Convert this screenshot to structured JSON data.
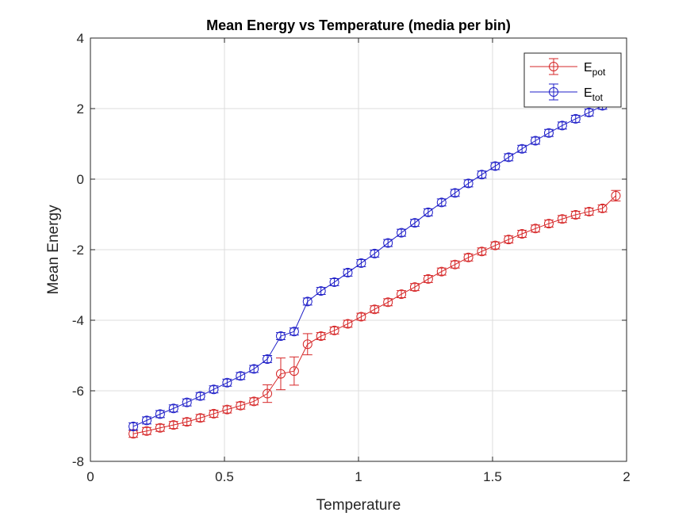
{
  "chart_data": {
    "type": "line",
    "title": "Mean Energy vs Temperature (media per bin)",
    "xlabel": "Temperature",
    "ylabel": "Mean Energy",
    "xlim": [
      0,
      2
    ],
    "ylim": [
      -8,
      4
    ],
    "xticks": [
      0,
      0.5,
      1,
      1.5,
      2
    ],
    "xtick_labels": [
      "0",
      "0.5",
      "1",
      "1.5",
      "2"
    ],
    "yticks": [
      -8,
      -6,
      -4,
      -2,
      0,
      2,
      4
    ],
    "ytick_labels": [
      "-8",
      "-6",
      "-4",
      "-2",
      "0",
      "2",
      "4"
    ],
    "grid": true,
    "legend_position": "top-right",
    "x": [
      0.16,
      0.21,
      0.26,
      0.31,
      0.36,
      0.41,
      0.46,
      0.51,
      0.56,
      0.61,
      0.66,
      0.71,
      0.76,
      0.81,
      0.86,
      0.91,
      0.96,
      1.01,
      1.06,
      1.11,
      1.16,
      1.21,
      1.26,
      1.31,
      1.36,
      1.41,
      1.46,
      1.51,
      1.56,
      1.61,
      1.66,
      1.71,
      1.76,
      1.81,
      1.86,
      1.91,
      1.96
    ],
    "series": [
      {
        "name": "E",
        "name_sub": "pot",
        "color": "#d62728",
        "values": [
          -7.22,
          -7.14,
          -7.05,
          -6.97,
          -6.88,
          -6.77,
          -6.65,
          -6.53,
          -6.42,
          -6.3,
          -6.08,
          -5.52,
          -5.44,
          -4.68,
          -4.45,
          -4.29,
          -4.1,
          -3.9,
          -3.69,
          -3.49,
          -3.26,
          -3.06,
          -2.83,
          -2.62,
          -2.42,
          -2.22,
          -2.05,
          -1.88,
          -1.71,
          -1.55,
          -1.4,
          -1.26,
          -1.13,
          -1.01,
          -0.92,
          -0.83,
          -0.47
        ],
        "errors": [
          0.1,
          0.1,
          0.1,
          0.1,
          0.1,
          0.1,
          0.1,
          0.1,
          0.1,
          0.1,
          0.25,
          0.45,
          0.4,
          0.3,
          0.1,
          0.1,
          0.1,
          0.1,
          0.1,
          0.1,
          0.1,
          0.1,
          0.1,
          0.1,
          0.1,
          0.1,
          0.1,
          0.1,
          0.1,
          0.1,
          0.1,
          0.1,
          0.1,
          0.1,
          0.1,
          0.1,
          0.15
        ]
      },
      {
        "name": "E",
        "name_sub": "tot",
        "color": "#1f1fc8",
        "values": [
          -7.01,
          -6.84,
          -6.66,
          -6.5,
          -6.33,
          -6.15,
          -5.96,
          -5.77,
          -5.58,
          -5.38,
          -5.1,
          -4.45,
          -4.32,
          -3.47,
          -3.17,
          -2.92,
          -2.65,
          -2.38,
          -2.11,
          -1.81,
          -1.52,
          -1.24,
          -0.94,
          -0.66,
          -0.39,
          -0.12,
          0.13,
          0.37,
          0.62,
          0.86,
          1.09,
          1.31,
          1.52,
          1.71,
          1.89,
          2.08,
          2.48
        ]
      }
    ]
  }
}
